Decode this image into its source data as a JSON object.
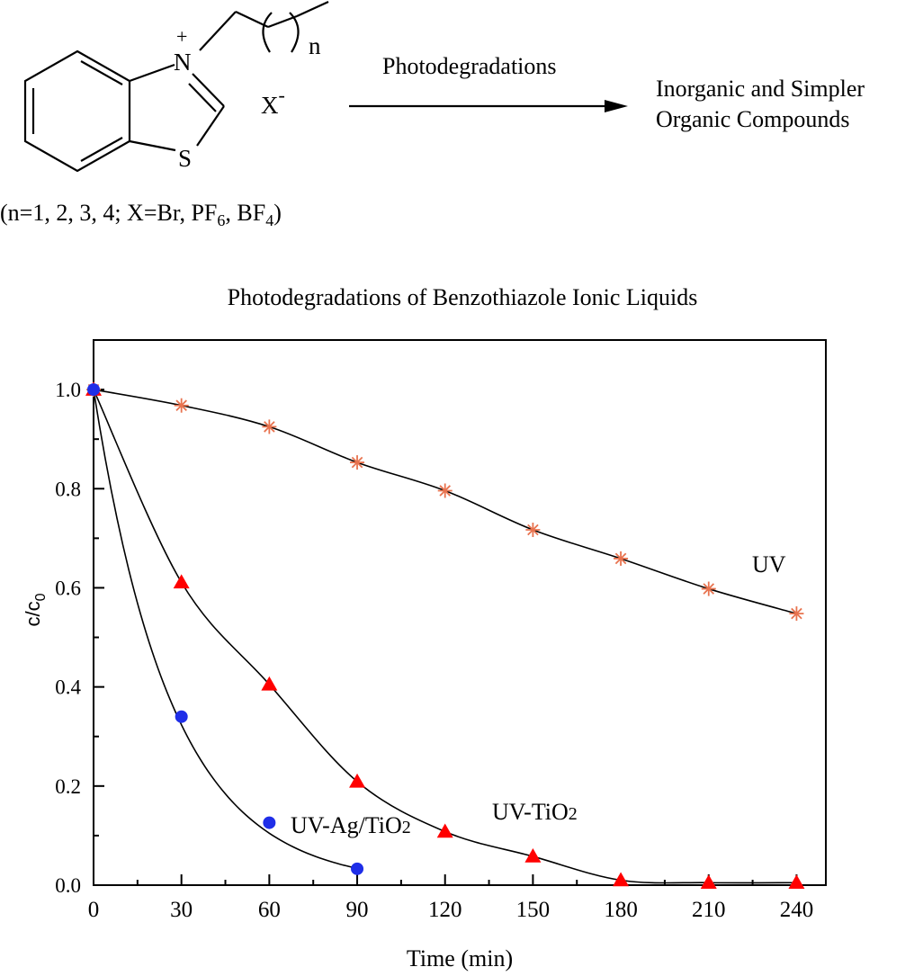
{
  "scheme": {
    "charge_plus": "+",
    "atom_n": "N",
    "atom_s": "S",
    "repeat_n": "n",
    "counterion": "X",
    "charge_minus": "-",
    "arrow_label": "Photodegradations",
    "products_line1": "Inorganic and Simpler",
    "products_line2": "Organic Compounds",
    "conditions": {
      "prefix": "(n=1, 2, 3, 4; X=Br, PF",
      "sub6": "6",
      "mid": ", BF",
      "sub4": "4",
      "suffix": ")"
    }
  },
  "colors": {
    "uv": "#e8734f",
    "uv_tio2": "#ff0000",
    "uv_ag_tio2": "#1f2ee8",
    "fit_line": "#000000",
    "axis": "#000000"
  },
  "chart_data": {
    "type": "scatter",
    "title": "Photodegradations of Benzothiazole Ionic Liquids",
    "xlabel": "Time (min)",
    "ylabel": {
      "main": "c/c",
      "sub": "0"
    },
    "xlim": [
      0,
      250
    ],
    "ylim": [
      0,
      1.1
    ],
    "xticks": [
      0,
      30,
      60,
      90,
      120,
      150,
      180,
      210,
      240
    ],
    "xtick_labels": [
      "0",
      "30",
      "60",
      "90",
      "120",
      "150",
      "180",
      "210",
      "240"
    ],
    "yticks": [
      0.0,
      0.2,
      0.4,
      0.6,
      0.8,
      1.0
    ],
    "ytick_labels": [
      "0.0",
      "0.2",
      "0.4",
      "0.6",
      "0.8",
      "1.0"
    ],
    "grid": false,
    "series": [
      {
        "key": "uv",
        "name": "UV",
        "marker": "asterisk",
        "x": [
          0,
          30,
          60,
          90,
          120,
          150,
          180,
          210,
          240
        ],
        "y": [
          1.0,
          0.968,
          0.925,
          0.853,
          0.796,
          0.717,
          0.659,
          0.598,
          0.548
        ]
      },
      {
        "key": "uv_tio2",
        "name": "UV-TiO",
        "name_sub": "2",
        "marker": "triangle",
        "x": [
          0,
          30,
          60,
          90,
          120,
          150,
          180,
          210,
          240
        ],
        "y": [
          1.0,
          0.611,
          0.405,
          0.209,
          0.108,
          0.058,
          0.01,
          0.005,
          0.005
        ]
      },
      {
        "key": "uv_ag_tio2",
        "name": "UV-Ag/TiO",
        "name_sub": "2",
        "marker": "circle",
        "x": [
          0,
          30,
          60,
          90
        ],
        "y": [
          1.0,
          0.34,
          0.126,
          0.033
        ]
      }
    ]
  }
}
